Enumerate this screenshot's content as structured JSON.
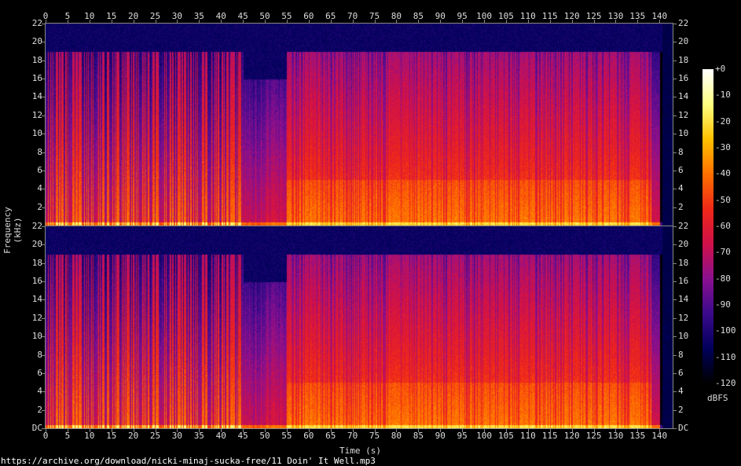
{
  "chart_data": {
    "type": "heatmap",
    "subtype": "spectrogram",
    "channels": 2,
    "xlabel": "Time (s)",
    "ylabel": "Frequency (kHz)",
    "xlim": [
      0,
      143
    ],
    "ylim": [
      0,
      22
    ],
    "x_ticks": [
      "0",
      "5",
      "10",
      "15",
      "20",
      "25",
      "30",
      "35",
      "40",
      "45",
      "50",
      "55",
      "60",
      "65",
      "70",
      "75",
      "80",
      "85",
      "90",
      "95",
      "100",
      "105",
      "110",
      "115",
      "120",
      "125",
      "130",
      "135",
      "140"
    ],
    "y_ticks_top": [
      "22",
      "20",
      "18",
      "16",
      "14",
      "12",
      "10",
      "8",
      "6",
      "4",
      "2"
    ],
    "y_ticks_bottom": [
      "22",
      "20",
      "18",
      "16",
      "14",
      "12",
      "10",
      "8",
      "6",
      "4",
      "2",
      "DC"
    ],
    "colorbar": {
      "label": "dBFS",
      "range": [
        -120,
        0
      ],
      "ticks": [
        "+0",
        "-10",
        "-20",
        "-30",
        "-40",
        "-50",
        "-60",
        "-70",
        "-80",
        "-90",
        "-100",
        "-110",
        "-120"
      ],
      "colors": [
        "#000000",
        "#00005a",
        "#3a0a8c",
        "#8a1090",
        "#d0104a",
        "#f02818",
        "#ff7000",
        "#ffc000",
        "#ffff80",
        "#ffffff"
      ]
    }
  },
  "footer": "https://archive.org/download/nicki-minaj-sucka-free/11 Doin' It Well.mp3"
}
